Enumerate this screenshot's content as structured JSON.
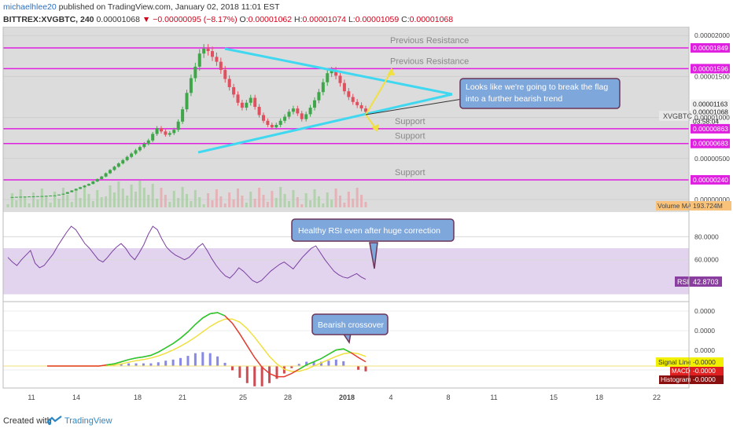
{
  "header": {
    "author": "michaelhlee20",
    "published": " published on TradingView.com, January 02, 2018 11:01 EST",
    "symbol": "BITTREX:XVGBTC, 240",
    "price": "0.00001068",
    "change": "−0.00000095 (−8.17%)",
    "o_label": "O:",
    "o_value": "0.00001062",
    "h_label": "H:",
    "h_value": "0.00001074",
    "l_label": "L:",
    "l_value": "0.00001059",
    "c_label": "C:",
    "c_value": "0.00001068"
  },
  "footer": {
    "created_with": "Created with",
    "brand": "TradingView"
  },
  "colors": {
    "up": "#3fa64a",
    "down": "#e0515f",
    "magenta": "#e020e0",
    "cyan": "#3fd8f0",
    "yellow": "#f0e040",
    "rsi_bg": "#e2d4ee",
    "rsi_line": "#7a3fa0"
  },
  "chart_data": [
    {
      "type": "candlestick",
      "symbol": "BITTREX:XVGBTC",
      "interval": "240",
      "x_tick_labels": [
        "11",
        "14",
        "18",
        "21",
        "25",
        "28",
        "2018",
        "4",
        "8",
        "11",
        "15",
        "18",
        "22"
      ],
      "y_tick_labels": [
        "0.00002000",
        "0.00001500",
        "0.00001000",
        "0.00000500",
        "0.00000000"
      ],
      "ylim": [
        0,
        2.05e-05
      ],
      "price_labels": [
        "0.00001849",
        "0.00001596",
        "0.00001163",
        "0.00001068",
        "03:58:04",
        "0.00000863",
        "0.00000683",
        "0.00000240"
      ],
      "symbol_tag": "XVGBTC",
      "volume_label": "Volume MA",
      "volume_value": "193.724M",
      "horizontal_levels": [
        {
          "value": 1.849e-05,
          "label": "Previous Resistance"
        },
        {
          "value": 1.596e-05,
          "label": "Previous Resistance"
        },
        {
          "value": 8.63e-06,
          "label": "Support"
        },
        {
          "value": 6.83e-06,
          "label": "Support"
        },
        {
          "value": 2.4e-06,
          "label": "Support"
        }
      ],
      "annotation": "Looks like we're going to break the flag\ninto a further bearish trend",
      "close_series": [
        3e-07,
        3e-07,
        3.2e-07,
        3.4e-07,
        3.5e-07,
        3.7e-07,
        3.8e-07,
        4e-07,
        4.2e-07,
        4.5e-07,
        4.8e-07,
        5e-07,
        6e-07,
        7e-07,
        9e-07,
        1.1e-06,
        1.3e-06,
        1.5e-06,
        1.7e-06,
        1.9e-06,
        2.2e-06,
        2.5e-06,
        2.8e-06,
        3.2e-06,
        3.6e-06,
        4e-06,
        4.4e-06,
        4.8e-06,
        5.2e-06,
        5.6e-06,
        6e-06,
        6.4e-06,
        6.8e-06,
        7.2e-06,
        8e-06,
        8.7e-06,
        8.3e-06,
        7.9e-06,
        8.1e-06,
        8.5e-06,
        9.5e-06,
        1.1e-05,
        1.3e-05,
        1.48e-05,
        1.62e-05,
        1.78e-05,
        1.84e-05,
        1.81e-05,
        1.74e-05,
        1.68e-05,
        1.58e-05,
        1.47e-05,
        1.37e-05,
        1.28e-05,
        1.18e-05,
        1.12e-05,
        1.18e-05,
        1.24e-05,
        1.13e-05,
        1.03e-05,
        9.6e-06,
        9.1e-06,
        8.8e-06,
        9.1e-06,
        9.6e-06,
        1.01e-05,
        1.07e-05,
        1.11e-05,
        1.05e-05,
        9.8e-06,
        1.04e-05,
        1.12e-05,
        1.21e-05,
        1.31e-05,
        1.43e-05,
        1.54e-05,
        1.57e-05,
        1.51e-05,
        1.42e-05,
        1.32e-05,
        1.25e-05,
        1.19e-05,
        1.15e-05,
        1.11e-05,
        1.07e-05
      ]
    },
    {
      "type": "line",
      "name": "RSI",
      "value_label": "42.8703",
      "y_tick_labels": [
        "80.0000",
        "60.0000"
      ],
      "ylim": [
        25,
        100
      ],
      "band": [
        30,
        70
      ],
      "annotation": "Healthy RSI even after huge correction",
      "values": [
        62,
        58,
        55,
        60,
        64,
        68,
        57,
        53,
        55,
        60,
        65,
        72,
        78,
        84,
        89,
        86,
        80,
        74,
        70,
        65,
        60,
        58,
        62,
        67,
        71,
        74,
        70,
        64,
        60,
        66,
        73,
        82,
        89,
        86,
        78,
        71,
        67,
        64,
        62,
        60,
        62,
        66,
        71,
        74,
        68,
        61,
        55,
        50,
        46,
        44,
        48,
        53,
        50,
        46,
        42,
        40,
        42,
        46,
        50,
        53,
        56,
        58,
        55,
        52,
        57,
        62,
        66,
        70,
        72,
        66,
        60,
        55,
        50,
        47,
        45,
        44,
        46,
        48,
        45,
        43
      ]
    },
    {
      "type": "line",
      "name": "MACD",
      "y_tick_labels": [
        "0.0000",
        "0.0000",
        "0.0000",
        "0.0000"
      ],
      "signal_label": "Signal Line",
      "signal_value": "-0.0000",
      "macd_value": "-0.0000",
      "histogram_label": "Histogram",
      "histogram_value": "-0.0000",
      "annotation": "Bearish crossover",
      "macd": [
        0,
        0,
        0,
        0,
        0,
        0,
        0,
        0,
        0.02,
        0.04,
        0.08,
        0.12,
        0.15,
        0.17,
        0.2,
        0.26,
        0.34,
        0.42,
        0.52,
        0.64,
        0.78,
        0.9,
        0.98,
        1,
        0.94,
        0.8,
        0.6,
        0.38,
        0.16,
        -0.02,
        -0.14,
        -0.2,
        -0.2,
        -0.14,
        -0.06,
        0.02,
        0.08,
        0.14,
        0.22,
        0.3,
        0.32,
        0.25,
        0.16,
        0.08
      ],
      "signal": [
        0,
        0,
        0,
        0,
        0,
        0,
        0,
        0,
        0.01,
        0.02,
        0.04,
        0.07,
        0.1,
        0.12,
        0.15,
        0.19,
        0.24,
        0.3,
        0.37,
        0.45,
        0.54,
        0.64,
        0.74,
        0.82,
        0.88,
        0.88,
        0.82,
        0.7,
        0.54,
        0.36,
        0.18,
        0.04,
        -0.06,
        -0.1,
        -0.1,
        -0.06,
        0,
        0.06,
        0.12,
        0.18,
        0.23,
        0.25,
        0.23,
        0.18
      ],
      "histogram": [
        0,
        0,
        0,
        0,
        0,
        0,
        0,
        0,
        0.01,
        0.02,
        0.04,
        0.05,
        0.05,
        0.05,
        0.05,
        0.07,
        0.1,
        0.12,
        0.15,
        0.19,
        0.24,
        0.26,
        0.24,
        0.18,
        0.06,
        -0.08,
        -0.22,
        -0.32,
        -0.38,
        -0.38,
        -0.32,
        -0.24,
        -0.14,
        -0.04,
        0.04,
        0.08,
        0.08,
        0.08,
        0.1,
        0.12,
        0.09,
        0,
        -0.07,
        -0.1
      ]
    }
  ]
}
